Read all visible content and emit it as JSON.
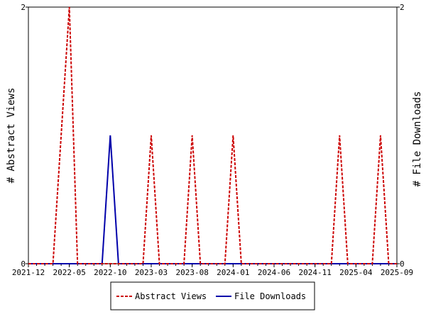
{
  "chart_data": {
    "type": "line",
    "x_ticks": [
      "2021-12",
      "2022-05",
      "2022-10",
      "2023-03",
      "2023-08",
      "2024-01",
      "2024-06",
      "2024-11",
      "2025-04",
      "2025-09"
    ],
    "xlim": [
      "2021-12",
      "2025-09"
    ],
    "ylabel_left": "# Abstract Views",
    "ylabel_right": "# File Downloads",
    "ylim_left": [
      0,
      2
    ],
    "ylim_right": [
      0,
      2
    ],
    "y_ticks_left": [
      "0",
      "2"
    ],
    "y_ticks_right": [
      "0",
      "2"
    ],
    "grid": false,
    "legend_position": "bottom-center",
    "series": [
      {
        "name": "Abstract Views",
        "color": "#cc0000",
        "style": "dashed",
        "axis": "left",
        "x": [
          "2021-12",
          "2022-03",
          "2022-04",
          "2022-05",
          "2022-06",
          "2023-02",
          "2023-03",
          "2023-04",
          "2023-07",
          "2023-08",
          "2023-09",
          "2023-12",
          "2024-01",
          "2024-02",
          "2025-01",
          "2025-02",
          "2025-03",
          "2025-06",
          "2025-07",
          "2025-08",
          "2025-09"
        ],
        "y": [
          0,
          0,
          1,
          2,
          0,
          0,
          1,
          0,
          0,
          1,
          0,
          0,
          1,
          0,
          0,
          1,
          0,
          0,
          1,
          0,
          0
        ]
      },
      {
        "name": "File Downloads",
        "color": "#0000aa",
        "style": "solid",
        "axis": "right",
        "x": [
          "2021-12",
          "2022-09",
          "2022-10",
          "2022-11",
          "2025-09"
        ],
        "y": [
          0,
          0,
          1,
          0,
          0
        ]
      }
    ]
  }
}
